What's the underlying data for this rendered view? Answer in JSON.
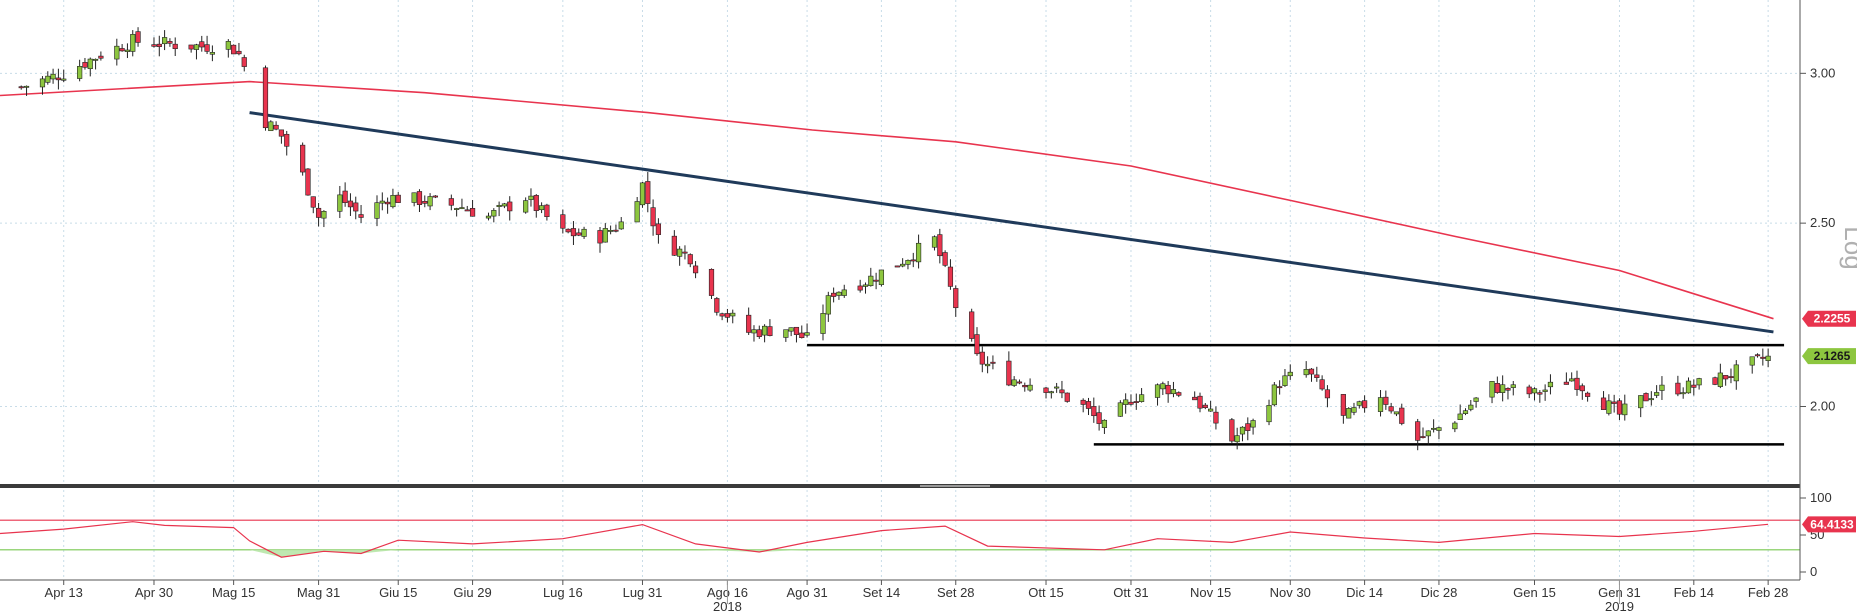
{
  "chart_data": [
    {
      "type": "candlestick",
      "scale": "log",
      "scale_label": "Log",
      "ylim": [
        1.82,
        3.28
      ],
      "yticks": [
        {
          "value": 3.0,
          "label": "3.00"
        },
        {
          "value": 2.5,
          "label": "2.50"
        },
        {
          "value": 2.0,
          "label": "2.00"
        }
      ],
      "grid": true,
      "x_labels": [
        {
          "date": "2018-04-13",
          "label": "Apr 13"
        },
        {
          "date": "2018-04-30",
          "label": "Apr 30"
        },
        {
          "date": "2018-05-15",
          "label": "Mag 15"
        },
        {
          "date": "2018-05-31",
          "label": "Mag 31"
        },
        {
          "date": "2018-06-15",
          "label": "Giu 15"
        },
        {
          "date": "2018-06-29",
          "label": "Giu 29"
        },
        {
          "date": "2018-07-16",
          "label": "Lug 16"
        },
        {
          "date": "2018-07-31",
          "label": "Lug 31"
        },
        {
          "date": "2018-08-16",
          "label": "Ago 16"
        },
        {
          "date": "2018-08-31",
          "label": "Ago 31"
        },
        {
          "date": "2018-09-14",
          "label": "Set 14"
        },
        {
          "date": "2018-09-28",
          "label": "Set 28"
        },
        {
          "date": "2018-10-15",
          "label": "Ott 15"
        },
        {
          "date": "2018-10-31",
          "label": "Ott 31"
        },
        {
          "date": "2018-11-15",
          "label": "Nov 15"
        },
        {
          "date": "2018-11-30",
          "label": "Nov 30"
        },
        {
          "date": "2018-12-14",
          "label": "Dic 14"
        },
        {
          "date": "2018-12-28",
          "label": "Dic 28"
        },
        {
          "date": "2019-01-15",
          "label": "Gen 15"
        },
        {
          "date": "2019-01-31",
          "label": "Gen 31"
        },
        {
          "date": "2019-02-14",
          "label": "Feb 14"
        },
        {
          "date": "2019-02-28",
          "label": "Feb 28"
        }
      ],
      "year_labels": [
        {
          "date": "2018-08-16",
          "label": "2018"
        },
        {
          "date": "2019-01-31",
          "label": "2019"
        }
      ],
      "price_path": [
        [
          "2018-04-05",
          2.95
        ],
        [
          "2018-04-13",
          3.0
        ],
        [
          "2018-04-20",
          3.07
        ],
        [
          "2018-04-26",
          3.12
        ],
        [
          "2018-05-02",
          3.11
        ],
        [
          "2018-05-09",
          3.1
        ],
        [
          "2018-05-14",
          3.11
        ],
        [
          "2018-05-16",
          3.07
        ],
        [
          "2018-05-18",
          2.98
        ],
        [
          "2018-05-21",
          2.83
        ],
        [
          "2018-05-24",
          2.78
        ],
        [
          "2018-05-28",
          2.65
        ],
        [
          "2018-05-31",
          2.52
        ],
        [
          "2018-06-04",
          2.58
        ],
        [
          "2018-06-08",
          2.52
        ],
        [
          "2018-06-13",
          2.58
        ],
        [
          "2018-06-20",
          2.57
        ],
        [
          "2018-06-27",
          2.55
        ],
        [
          "2018-07-02",
          2.52
        ],
        [
          "2018-07-09",
          2.58
        ],
        [
          "2018-07-16",
          2.47
        ],
        [
          "2018-07-23",
          2.46
        ],
        [
          "2018-07-27",
          2.5
        ],
        [
          "2018-07-31",
          2.62
        ],
        [
          "2018-08-03",
          2.45
        ],
        [
          "2018-08-09",
          2.4
        ],
        [
          "2018-08-14",
          2.26
        ],
        [
          "2018-08-20",
          2.19
        ],
        [
          "2018-08-27",
          2.2
        ],
        [
          "2018-08-31",
          2.17
        ],
        [
          "2018-09-05",
          2.3
        ],
        [
          "2018-09-11",
          2.33
        ],
        [
          "2018-09-17",
          2.38
        ],
        [
          "2018-09-24",
          2.45
        ],
        [
          "2018-09-28",
          2.26
        ],
        [
          "2018-10-02",
          2.12
        ],
        [
          "2018-10-08",
          2.07
        ],
        [
          "2018-10-15",
          2.05
        ],
        [
          "2018-10-22",
          2.0
        ],
        [
          "2018-10-26",
          1.95
        ],
        [
          "2018-10-31",
          2.02
        ],
        [
          "2018-11-06",
          2.05
        ],
        [
          "2018-11-12",
          2.02
        ],
        [
          "2018-11-19",
          1.92
        ],
        [
          "2018-11-23",
          1.96
        ],
        [
          "2018-11-28",
          2.06
        ],
        [
          "2018-12-03",
          2.09
        ],
        [
          "2018-12-10",
          1.97
        ],
        [
          "2018-12-17",
          2.03
        ],
        [
          "2018-12-24",
          1.92
        ],
        [
          "2018-12-31",
          1.97
        ],
        [
          "2019-01-07",
          2.05
        ],
        [
          "2019-01-15",
          2.03
        ],
        [
          "2019-01-22",
          2.07
        ],
        [
          "2019-01-31",
          1.98
        ],
        [
          "2019-02-07",
          2.04
        ],
        [
          "2019-02-14",
          2.05
        ],
        [
          "2019-02-21",
          2.08
        ],
        [
          "2019-02-28",
          2.1265
        ]
      ],
      "series": [
        {
          "name": "Moving average",
          "color": "#e8344e",
          "last_value": 2.2255,
          "last_label": "2.2255",
          "points": [
            [
              "2018-04-01",
              2.92
            ],
            [
              "2018-05-18",
              2.97
            ],
            [
              "2018-06-20",
              2.93
            ],
            [
              "2018-08-01",
              2.86
            ],
            [
              "2018-09-01",
              2.8
            ],
            [
              "2018-09-28",
              2.76
            ],
            [
              "2018-10-31",
              2.68
            ],
            [
              "2018-11-30",
              2.57
            ],
            [
              "2018-12-31",
              2.46
            ],
            [
              "2019-01-31",
              2.36
            ],
            [
              "2019-03-01",
              2.2255
            ]
          ]
        }
      ],
      "last_price": {
        "value": 2.1265,
        "label": "2.1265",
        "color": "#8dc63f"
      },
      "annotations": [
        {
          "kind": "trendline",
          "color": "#1f3a5a",
          "from": [
            "2018-05-18",
            2.86
          ],
          "to": [
            "2019-03-01",
            2.19
          ]
        },
        {
          "kind": "resistance",
          "color": "#000000",
          "from": [
            "2018-08-31",
            2.155
          ],
          "to": [
            "2019-03-03",
            2.155
          ]
        },
        {
          "kind": "support",
          "color": "#000000",
          "from": [
            "2018-10-24",
            1.91
          ],
          "to": [
            "2019-03-03",
            1.91
          ]
        }
      ]
    },
    {
      "type": "line",
      "name": "RSI",
      "ylim": [
        0,
        100
      ],
      "yticks": [
        {
          "value": 100,
          "label": "100"
        },
        {
          "value": 50,
          "label": "50"
        },
        {
          "value": 0,
          "label": "0"
        }
      ],
      "levels": [
        {
          "value": 70,
          "color": "#e8344e"
        },
        {
          "value": 30,
          "color": "#78c850"
        }
      ],
      "points": [
        [
          "2018-04-01",
          52
        ],
        [
          "2018-04-13",
          58
        ],
        [
          "2018-04-26",
          68
        ],
        [
          "2018-05-02",
          63
        ],
        [
          "2018-05-15",
          60
        ],
        [
          "2018-05-18",
          42
        ],
        [
          "2018-05-24",
          20
        ],
        [
          "2018-06-01",
          28
        ],
        [
          "2018-06-08",
          25
        ],
        [
          "2018-06-15",
          43
        ],
        [
          "2018-06-29",
          38
        ],
        [
          "2018-07-16",
          45
        ],
        [
          "2018-07-31",
          64
        ],
        [
          "2018-08-10",
          38
        ],
        [
          "2018-08-22",
          27
        ],
        [
          "2018-08-31",
          40
        ],
        [
          "2018-09-14",
          56
        ],
        [
          "2018-09-26",
          62
        ],
        [
          "2018-10-04",
          35
        ],
        [
          "2018-10-26",
          30
        ],
        [
          "2018-11-05",
          45
        ],
        [
          "2018-11-19",
          40
        ],
        [
          "2018-11-30",
          54
        ],
        [
          "2018-12-14",
          46
        ],
        [
          "2018-12-28",
          40
        ],
        [
          "2019-01-15",
          52
        ],
        [
          "2019-01-31",
          48
        ],
        [
          "2019-02-14",
          55
        ],
        [
          "2019-02-28",
          64.4133
        ]
      ],
      "last_value": 64.4133,
      "last_label": "64.4133",
      "color": "#e8344e"
    }
  ]
}
